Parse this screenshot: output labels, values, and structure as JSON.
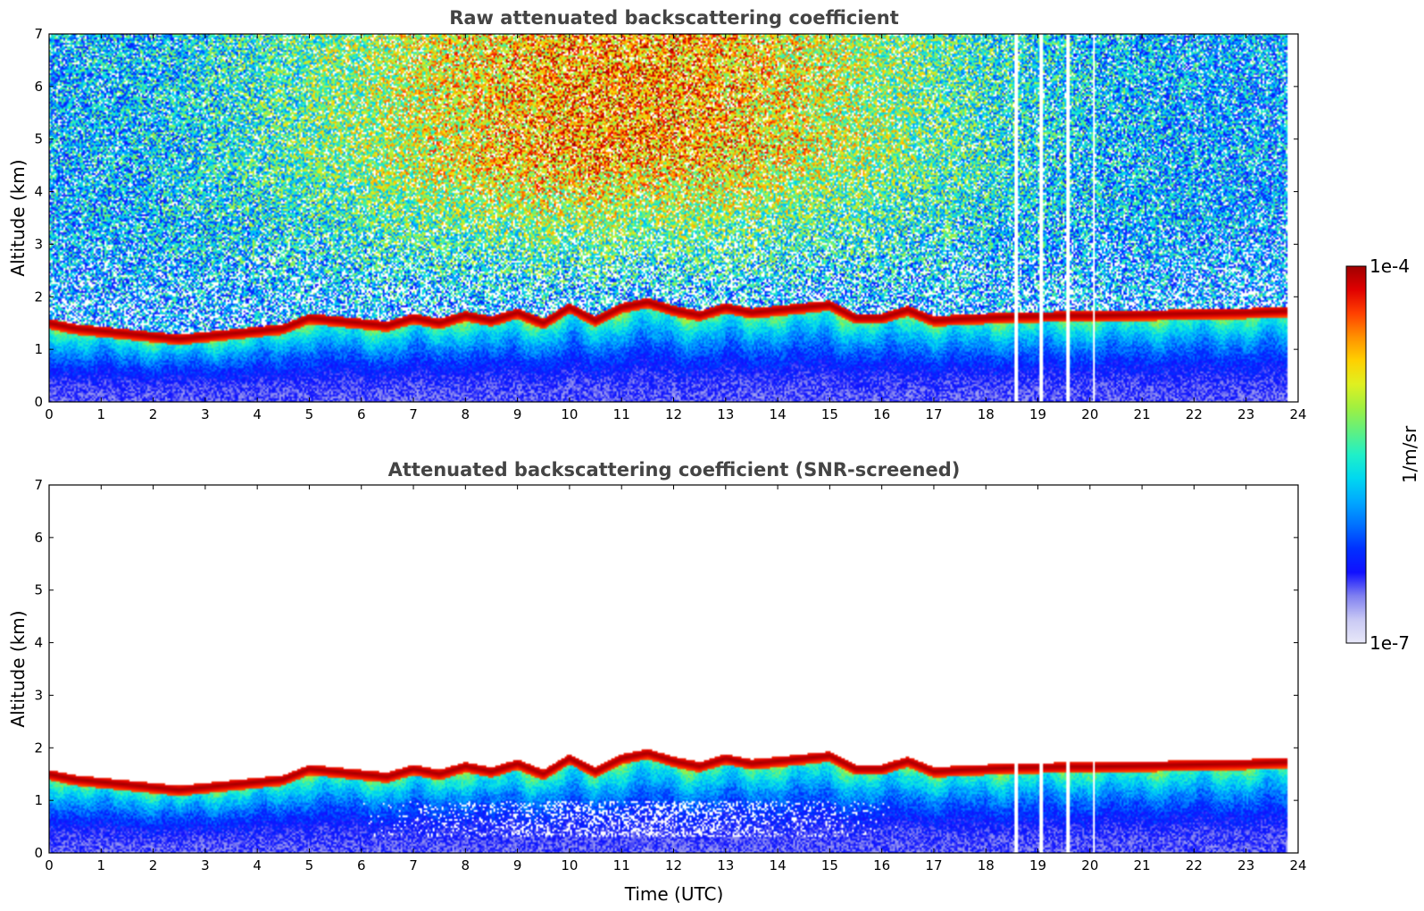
{
  "colors": {
    "colormap": [
      "#e8e8f8",
      "#c8c8f4",
      "#8080f0",
      "#1010ff",
      "#0030ff",
      "#0070ff",
      "#00a8ff",
      "#00d8f0",
      "#20f0c8",
      "#60f080",
      "#a0f040",
      "#e0f020",
      "#ffd000",
      "#ff9000",
      "#ff4000",
      "#e00000",
      "#a00000"
    ]
  },
  "colorbar": {
    "max_label": "1e-4",
    "min_label": "1e-7",
    "unit": "1/m/sr"
  },
  "chart_data": [
    {
      "type": "heatmap",
      "title": "Raw attenuated backscattering coefficient",
      "xlabel": "",
      "ylabel": "Altitude (km)",
      "xlim": [
        0,
        24
      ],
      "ylim": [
        0,
        7
      ],
      "xticks": [
        "0",
        "1",
        "2",
        "3",
        "4",
        "5",
        "6",
        "7",
        "8",
        "9",
        "10",
        "11",
        "12",
        "13",
        "14",
        "15",
        "16",
        "17",
        "18",
        "19",
        "20",
        "21",
        "22",
        "23",
        "24"
      ],
      "yticks": [
        "0",
        "1",
        "2",
        "3",
        "4",
        "5",
        "6",
        "7"
      ],
      "data_end_hour": 23.8,
      "noise_above_layer": true,
      "gaps_hours": [
        18.58,
        19.06,
        19.57,
        20.08
      ],
      "layer_top_km": {
        "time_utc": [
          0,
          0.5,
          1,
          1.5,
          2,
          2.5,
          3,
          3.5,
          4,
          4.5,
          5,
          5.5,
          6,
          6.5,
          7,
          7.5,
          8,
          8.5,
          9,
          9.5,
          10,
          10.5,
          11,
          11.5,
          12,
          12.5,
          13,
          13.5,
          14,
          14.5,
          15,
          15.5,
          16,
          16.5,
          17,
          17.5,
          18,
          18.5,
          19,
          19.5,
          20,
          20.5,
          21,
          21.5,
          22,
          22.5,
          23,
          23.5,
          23.8
        ],
        "altitude_km": [
          1.5,
          1.4,
          1.35,
          1.3,
          1.25,
          1.2,
          1.25,
          1.3,
          1.35,
          1.4,
          1.6,
          1.55,
          1.5,
          1.45,
          1.6,
          1.5,
          1.65,
          1.55,
          1.7,
          1.5,
          1.8,
          1.55,
          1.8,
          1.9,
          1.75,
          1.65,
          1.8,
          1.7,
          1.75,
          1.8,
          1.85,
          1.6,
          1.6,
          1.75,
          1.55,
          1.58,
          1.6,
          1.62,
          1.63,
          1.64,
          1.64,
          1.65,
          1.66,
          1.67,
          1.68,
          1.69,
          1.7,
          1.72,
          1.73
        ]
      }
    },
    {
      "type": "heatmap",
      "title": "Attenuated backscattering coefficient (SNR-screened)",
      "xlabel": "Time (UTC)",
      "ylabel": "Altitude (km)",
      "xlim": [
        0,
        24
      ],
      "ylim": [
        0,
        7
      ],
      "xticks": [
        "0",
        "1",
        "2",
        "3",
        "4",
        "5",
        "6",
        "7",
        "8",
        "9",
        "10",
        "11",
        "12",
        "13",
        "14",
        "15",
        "16",
        "17",
        "18",
        "19",
        "20",
        "21",
        "22",
        "23",
        "24"
      ],
      "yticks": [
        "0",
        "1",
        "2",
        "3",
        "4",
        "5",
        "6",
        "7"
      ],
      "data_end_hour": 23.8,
      "noise_above_layer": false,
      "gaps_hours": [
        18.58,
        19.06,
        19.57,
        20.08
      ],
      "layer_top_km": {
        "time_utc": [
          0,
          0.5,
          1,
          1.5,
          2,
          2.5,
          3,
          3.5,
          4,
          4.5,
          5,
          5.5,
          6,
          6.5,
          7,
          7.5,
          8,
          8.5,
          9,
          9.5,
          10,
          10.5,
          11,
          11.5,
          12,
          12.5,
          13,
          13.5,
          14,
          14.5,
          15,
          15.5,
          16,
          16.5,
          17,
          17.5,
          18,
          18.5,
          19,
          19.5,
          20,
          20.5,
          21,
          21.5,
          22,
          22.5,
          23,
          23.5,
          23.8
        ],
        "altitude_km": [
          1.5,
          1.4,
          1.35,
          1.3,
          1.25,
          1.2,
          1.25,
          1.3,
          1.35,
          1.4,
          1.6,
          1.55,
          1.5,
          1.45,
          1.6,
          1.5,
          1.65,
          1.55,
          1.7,
          1.5,
          1.8,
          1.55,
          1.8,
          1.9,
          1.75,
          1.65,
          1.8,
          1.7,
          1.75,
          1.8,
          1.85,
          1.6,
          1.6,
          1.75,
          1.55,
          1.58,
          1.6,
          1.62,
          1.63,
          1.64,
          1.64,
          1.65,
          1.66,
          1.67,
          1.68,
          1.69,
          1.7,
          1.72,
          1.73
        ]
      }
    }
  ]
}
